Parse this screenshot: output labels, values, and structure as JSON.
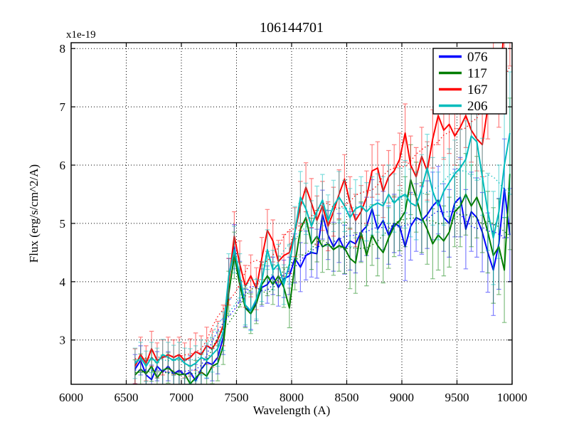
{
  "figure": {
    "title": "106144701",
    "xlabel": "Wavelength (A)",
    "ylabel": "Flux (erg/s/cm^2/A)",
    "offset_label": "x1e-19"
  },
  "chart_data": {
    "type": "line",
    "title": "106144701",
    "xlabel": "Wavelength (A)",
    "ylabel": "Flux (erg/s/cm^2/A)",
    "y_offset_label": "x1e-19",
    "y_unit_scale": "1e-19",
    "xlim": [
      6000,
      10000
    ],
    "ylim": [
      2.24,
      8.1
    ],
    "xticks": [
      6000,
      6500,
      7000,
      7500,
      8000,
      8500,
      9000,
      9500,
      10000
    ],
    "yticks": [
      3,
      4,
      5,
      6,
      7,
      8
    ],
    "grid": true,
    "grid_style": "dotted",
    "legend_position": "upper right",
    "error_bars": true,
    "dotted_overlay": "smoothed version of each series drawn as dotted line",
    "x": [
      6580,
      6630,
      6680,
      6730,
      6780,
      6830,
      6880,
      6930,
      6980,
      7030,
      7080,
      7130,
      7180,
      7230,
      7280,
      7330,
      7380,
      7430,
      7480,
      7530,
      7580,
      7630,
      7680,
      7730,
      7780,
      7830,
      7880,
      7930,
      7980,
      8030,
      8080,
      8130,
      8180,
      8230,
      8280,
      8330,
      8380,
      8430,
      8480,
      8530,
      8580,
      8630,
      8680,
      8730,
      8780,
      8830,
      8880,
      8930,
      8980,
      9030,
      9080,
      9130,
      9180,
      9230,
      9280,
      9330,
      9380,
      9430,
      9480,
      9530,
      9580,
      9630,
      9680,
      9730,
      9780,
      9830,
      9880,
      9930,
      9980
    ],
    "series": [
      {
        "name": "076",
        "color": "#0000ff",
        "values": [
          2.5,
          2.65,
          2.4,
          2.32,
          2.55,
          2.45,
          2.55,
          2.42,
          2.48,
          2.4,
          2.45,
          2.3,
          2.5,
          2.62,
          2.58,
          2.7,
          3.05,
          4.05,
          4.6,
          4.0,
          3.55,
          3.5,
          3.65,
          3.9,
          3.95,
          4.1,
          3.9,
          4.05,
          4.1,
          4.4,
          4.25,
          4.45,
          4.5,
          4.48,
          5.15,
          4.8,
          4.6,
          4.75,
          4.55,
          4.7,
          4.65,
          4.85,
          4.95,
          5.25,
          4.9,
          5.05,
          4.8,
          5.0,
          4.95,
          4.6,
          4.95,
          5.1,
          5.05,
          5.15,
          5.3,
          5.4,
          5.1,
          5.0,
          5.35,
          5.45,
          4.9,
          5.2,
          5.1,
          4.85,
          4.5,
          4.2,
          4.65,
          5.6,
          4.8
        ],
        "errors": [
          0.25,
          0.25,
          0.25,
          0.25,
          0.25,
          0.25,
          0.25,
          0.25,
          0.25,
          0.25,
          0.28,
          0.28,
          0.28,
          0.28,
          0.28,
          0.28,
          0.3,
          0.35,
          0.38,
          0.35,
          0.32,
          0.32,
          0.32,
          0.32,
          0.32,
          0.32,
          0.32,
          0.32,
          0.32,
          0.42,
          0.42,
          0.42,
          0.42,
          0.42,
          0.42,
          0.42,
          0.42,
          0.42,
          0.42,
          0.5,
          0.5,
          0.5,
          0.5,
          0.5,
          0.5,
          0.5,
          0.5,
          0.5,
          0.5,
          0.58,
          0.58,
          0.58,
          0.58,
          0.58,
          0.58,
          0.58,
          0.58,
          0.58,
          0.58,
          0.68,
          0.68,
          0.68,
          0.68,
          0.68,
          0.68,
          0.78,
          0.78,
          0.85,
          0.8
        ]
      },
      {
        "name": "117",
        "color": "#007d00",
        "values": [
          2.4,
          2.5,
          2.42,
          2.55,
          2.35,
          2.48,
          2.52,
          2.45,
          2.4,
          2.42,
          2.25,
          2.35,
          2.45,
          2.38,
          2.55,
          2.6,
          2.9,
          3.8,
          4.45,
          3.95,
          3.55,
          3.45,
          3.62,
          3.95,
          4.1,
          3.95,
          4.1,
          3.9,
          3.55,
          4.3,
          4.9,
          5.1,
          4.65,
          4.78,
          4.6,
          4.65,
          4.55,
          4.62,
          4.58,
          4.4,
          4.32,
          4.85,
          4.45,
          4.8,
          4.62,
          4.5,
          4.75,
          4.95,
          5.05,
          5.2,
          5.75,
          5.45,
          5.1,
          4.9,
          4.65,
          4.8,
          4.7,
          4.85,
          5.2,
          5.3,
          5.5,
          5.3,
          5.45,
          5.2,
          4.85,
          4.45,
          4.6,
          4.2,
          5.85
        ],
        "errors": [
          0.26,
          0.26,
          0.26,
          0.26,
          0.26,
          0.26,
          0.26,
          0.26,
          0.26,
          0.26,
          0.3,
          0.3,
          0.3,
          0.3,
          0.3,
          0.3,
          0.32,
          0.38,
          0.4,
          0.38,
          0.34,
          0.34,
          0.34,
          0.34,
          0.34,
          0.34,
          0.34,
          0.34,
          0.34,
          0.44,
          0.44,
          0.44,
          0.44,
          0.44,
          0.44,
          0.44,
          0.44,
          0.44,
          0.44,
          0.52,
          0.52,
          0.52,
          0.52,
          0.52,
          0.52,
          0.52,
          0.52,
          0.52,
          0.52,
          0.6,
          0.6,
          0.6,
          0.6,
          0.6,
          0.6,
          0.6,
          0.6,
          0.6,
          0.6,
          0.7,
          0.7,
          0.7,
          0.7,
          0.7,
          0.7,
          0.82,
          0.82,
          0.9,
          1.3
        ]
      },
      {
        "name": "167",
        "color": "#ff0000",
        "values": [
          2.55,
          2.75,
          2.6,
          2.85,
          2.65,
          2.7,
          2.75,
          2.7,
          2.75,
          2.65,
          2.7,
          2.8,
          2.75,
          2.9,
          2.85,
          3.0,
          3.25,
          4.0,
          4.78,
          4.3,
          3.92,
          4.1,
          3.88,
          4.4,
          4.88,
          4.7,
          4.35,
          4.45,
          4.5,
          4.85,
          5.3,
          5.62,
          5.35,
          5.05,
          5.3,
          4.95,
          5.2,
          5.5,
          5.76,
          5.35,
          5.05,
          5.2,
          5.45,
          5.9,
          5.95,
          5.55,
          5.8,
          5.9,
          6.1,
          6.55,
          6.0,
          5.8,
          6.15,
          5.9,
          6.45,
          6.85,
          6.6,
          6.7,
          6.5,
          6.65,
          6.85,
          6.6,
          6.45,
          6.35,
          7.0,
          7.6,
          7.2,
          8.4,
          8.3
        ],
        "errors": [
          0.3,
          0.3,
          0.3,
          0.3,
          0.3,
          0.3,
          0.3,
          0.3,
          0.3,
          0.3,
          0.32,
          0.32,
          0.32,
          0.32,
          0.32,
          0.32,
          0.35,
          0.4,
          0.42,
          0.4,
          0.36,
          0.36,
          0.36,
          0.36,
          0.36,
          0.36,
          0.36,
          0.36,
          0.36,
          0.42,
          0.42,
          0.42,
          0.42,
          0.42,
          0.42,
          0.42,
          0.42,
          0.42,
          0.42,
          0.45,
          0.45,
          0.45,
          0.45,
          0.45,
          0.45,
          0.45,
          0.45,
          0.45,
          0.45,
          0.5,
          0.5,
          0.5,
          0.5,
          0.5,
          0.5,
          0.5,
          0.5,
          0.5,
          0.5,
          0.55,
          0.55,
          0.55,
          0.55,
          0.55,
          0.55,
          0.55,
          0.55,
          0.6,
          0.6
        ]
      },
      {
        "name": "206",
        "color": "#00bcbc",
        "values": [
          2.6,
          2.7,
          2.55,
          2.7,
          2.6,
          2.75,
          2.7,
          2.65,
          2.7,
          2.6,
          2.55,
          2.6,
          2.7,
          2.65,
          2.75,
          2.85,
          3.15,
          4.1,
          4.55,
          4.1,
          3.6,
          3.5,
          3.7,
          4.0,
          4.55,
          4.2,
          4.3,
          3.95,
          4.3,
          4.85,
          5.45,
          5.25,
          4.95,
          5.2,
          5.4,
          5.05,
          5.3,
          5.45,
          5.3,
          5.1,
          5.25,
          5.3,
          5.2,
          5.3,
          5.35,
          5.3,
          5.5,
          5.35,
          5.45,
          5.5,
          5.35,
          5.3,
          5.6,
          5.95,
          5.55,
          5.3,
          5.55,
          5.7,
          5.85,
          5.95,
          6.1,
          6.5,
          6.4,
          5.8,
          5.2,
          4.75,
          5.2,
          6.0,
          6.55
        ],
        "errors": [
          0.26,
          0.26,
          0.26,
          0.26,
          0.26,
          0.26,
          0.26,
          0.26,
          0.26,
          0.26,
          0.3,
          0.3,
          0.3,
          0.3,
          0.3,
          0.3,
          0.33,
          0.38,
          0.4,
          0.38,
          0.34,
          0.34,
          0.34,
          0.34,
          0.34,
          0.34,
          0.34,
          0.34,
          0.34,
          0.44,
          0.44,
          0.44,
          0.44,
          0.44,
          0.44,
          0.44,
          0.44,
          0.44,
          0.44,
          0.5,
          0.5,
          0.5,
          0.5,
          0.5,
          0.5,
          0.5,
          0.5,
          0.5,
          0.5,
          0.58,
          0.58,
          0.58,
          0.58,
          0.58,
          0.58,
          0.58,
          0.58,
          0.58,
          0.58,
          0.66,
          0.66,
          0.66,
          0.66,
          0.66,
          0.66,
          0.8,
          0.8,
          0.9,
          1.05
        ]
      }
    ],
    "legend_entries": [
      "076",
      "117",
      "167",
      "206"
    ]
  }
}
